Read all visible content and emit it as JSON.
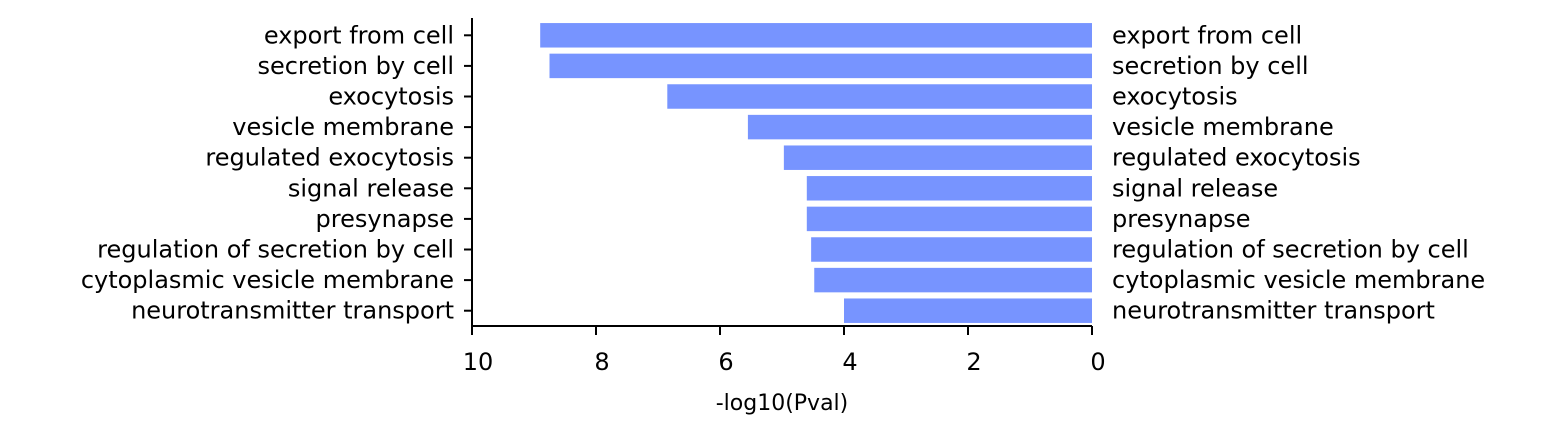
{
  "chart_data": {
    "type": "bar",
    "orientation": "horizontal",
    "categories": [
      "export from cell",
      "secretion by cell",
      "exocytosis",
      "vesicle membrane",
      "regulated exocytosis",
      "signal release",
      "presynapse",
      "regulation of secretion by cell",
      "cytoplasmic vesicle membrane",
      "neurotransmitter transport"
    ],
    "values": [
      8.9,
      8.75,
      6.85,
      5.55,
      4.97,
      4.6,
      4.6,
      4.53,
      4.48,
      4.0
    ],
    "xlabel": "-log10(Pval)",
    "xlim": [
      10,
      0
    ],
    "xticks": [
      10,
      8,
      6,
      4,
      2,
      0
    ],
    "xtick_labels": [
      "10",
      "8",
      "6",
      "4",
      "2",
      "0"
    ],
    "x_reversed": true,
    "labels_both_sides": true,
    "bar_color": "#7794ff",
    "grid": false
  }
}
